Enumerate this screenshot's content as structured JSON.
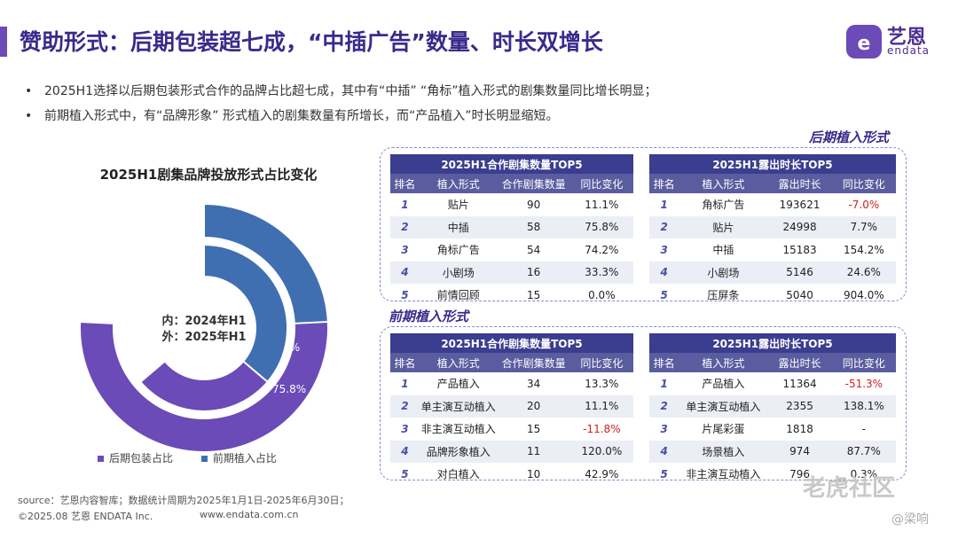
{
  "title": "赞助形式：后期包装超七成，“中插广告”数量、时长双增长",
  "logo": {
    "name": "艺恩",
    "sub": "endata"
  },
  "bullets": [
    "2025H1选择以后期包装形式合作的品牌占比超七成，其中有“中插” “角标”植入形式的剧集数量同比增长明显；",
    "前期植入形式中，有“品牌形象” 形式植入的剧集数量有所增长，而“产品植入”时长明显缩短。"
  ],
  "section_post": "后期植入形式",
  "section_pre": "前期植入形式",
  "donut_center": [
    "内：2024年H1",
    "外：2025年H1"
  ],
  "table_headers_count": [
    "排名",
    "植入形式",
    "合作剧集数量",
    "同比变化"
  ],
  "table_headers_time": [
    "排名",
    "植入形式",
    "露出时长",
    "同比变化"
  ],
  "tables": {
    "post_count": {
      "caption": "2025H1合作剧集数量TOP5",
      "rows": [
        [
          "1",
          "贴片",
          "90",
          "11.1%"
        ],
        [
          "2",
          "中插",
          "58",
          "75.8%"
        ],
        [
          "3",
          "角标广告",
          "54",
          "74.2%"
        ],
        [
          "4",
          "小剧场",
          "16",
          "33.3%"
        ],
        [
          "5",
          "前情回顾",
          "15",
          "0.0%"
        ]
      ]
    },
    "post_time": {
      "caption": "2025H1露出时长TOP5",
      "rows": [
        [
          "1",
          "角标广告",
          "193621",
          "-7.0%"
        ],
        [
          "2",
          "贴片",
          "24998",
          "7.7%"
        ],
        [
          "3",
          "中插",
          "15183",
          "154.2%"
        ],
        [
          "4",
          "小剧场",
          "5146",
          "24.6%"
        ],
        [
          "5",
          "压屏条",
          "5040",
          "904.0%"
        ]
      ]
    },
    "pre_count": {
      "caption": "2025H1合作剧集数量TOP5",
      "rows": [
        [
          "1",
          "产品植入",
          "34",
          "13.3%"
        ],
        [
          "2",
          "单主演互动植入",
          "20",
          "11.1%"
        ],
        [
          "3",
          "非主演互动植入",
          "15",
          "-11.8%"
        ],
        [
          "4",
          "品牌形象植入",
          "11",
          "120.0%"
        ],
        [
          "5",
          "对白植入",
          "10",
          "42.9%"
        ]
      ]
    },
    "pre_time": {
      "caption": "2025H1露出时长TOP5",
      "rows": [
        [
          "1",
          "产品植入",
          "11364",
          "-51.3%"
        ],
        [
          "2",
          "单主演互动植入",
          "2355",
          "138.1%"
        ],
        [
          "3",
          "片尾彩蛋",
          "1818",
          "-"
        ],
        [
          "4",
          "场景植入",
          "974",
          "87.7%"
        ],
        [
          "5",
          "非主演互动植入",
          "796",
          "0.3%"
        ]
      ]
    }
  },
  "chart_data": {
    "type": "pie",
    "title": "2025H1剧集品牌投放形式占比变化",
    "categories": [
      "后期包装占比",
      "前期植入占比"
    ],
    "series": [
      {
        "name": "外：2025年H1",
        "values": [
          75.8,
          24.2
        ]
      },
      {
        "name": "内：2024年H1",
        "values": [
          63.8,
          36.2
        ]
      }
    ],
    "labels_outer": [
      "75.8%",
      "24.2%"
    ],
    "labels_inner": [
      "63.8%",
      "36.2%"
    ],
    "colors": [
      "#6a4bb8",
      "#3f6fb0"
    ],
    "legend": "bottom"
  },
  "footer": {
    "source": "source：艺恩内容智库；数据统计周期为2025年1月1日-2025年6月30日；",
    "copyright": "©2025.08 艺恩 ENDATA Inc.",
    "website": "www.endata.com.cn"
  },
  "watermark": {
    "main": "老虎社区",
    "user": "@梁响"
  }
}
